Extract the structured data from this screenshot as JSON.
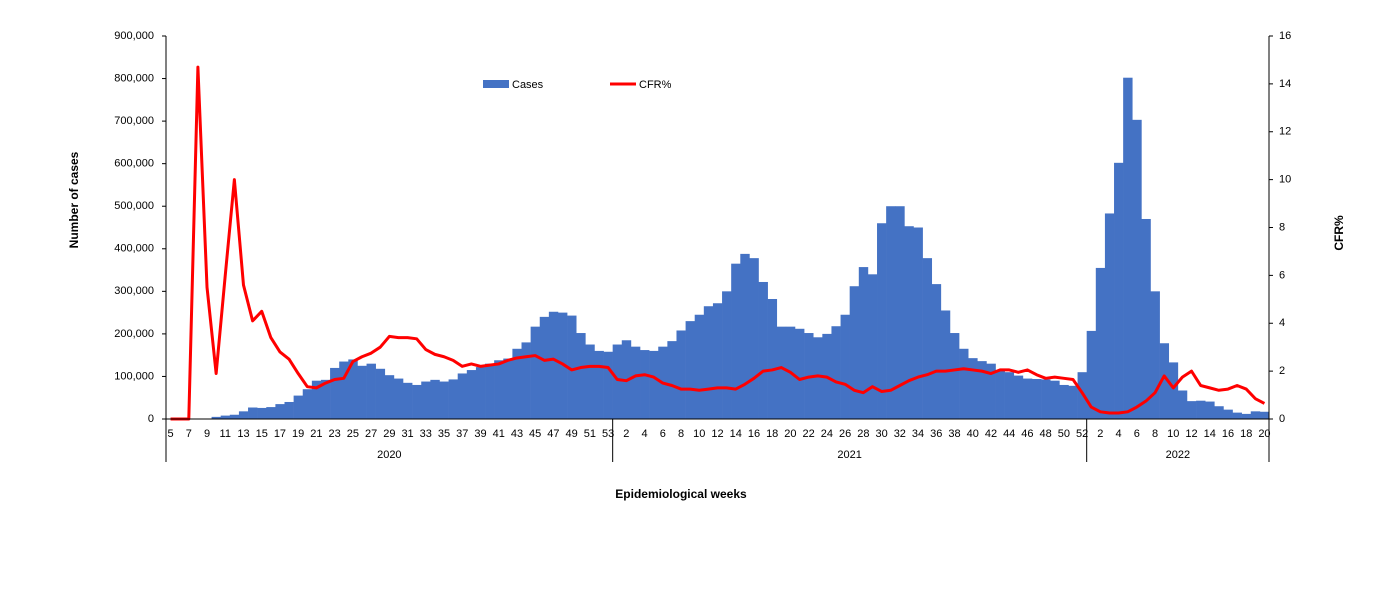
{
  "chart_data": {
    "type": "bar-line",
    "y_label": "Number of cases",
    "y2_label": "CFR%",
    "x_label": "Epidemiological weeks",
    "groups": [
      "2020",
      "2021",
      "2022"
    ],
    "categories": [
      5,
      null,
      7,
      null,
      9,
      null,
      11,
      null,
      13,
      null,
      15,
      null,
      17,
      null,
      19,
      null,
      21,
      null,
      23,
      null,
      25,
      null,
      27,
      null,
      29,
      null,
      31,
      null,
      33,
      null,
      35,
      null,
      37,
      null,
      39,
      null,
      41,
      null,
      43,
      null,
      45,
      null,
      47,
      null,
      49,
      null,
      51,
      null,
      53,
      null,
      2,
      null,
      4,
      null,
      6,
      null,
      8,
      null,
      10,
      null,
      12,
      null,
      14,
      null,
      16,
      null,
      18,
      null,
      20,
      null,
      22,
      null,
      24,
      null,
      26,
      null,
      28,
      null,
      30,
      null,
      32,
      null,
      34,
      null,
      36,
      null,
      38,
      null,
      40,
      null,
      42,
      null,
      44,
      null,
      46,
      null,
      48,
      null,
      50,
      null,
      52,
      null,
      2,
      null,
      4,
      null,
      6,
      null,
      8,
      null,
      10,
      null,
      12,
      null,
      14,
      null,
      16,
      null,
      18,
      null,
      20
    ],
    "series": [
      {
        "name": "Cases",
        "type": "bar",
        "axis": "y",
        "color": "#4472c4",
        "values": [
          0,
          0,
          0,
          0,
          1000,
          5000,
          8000,
          10000,
          18000,
          27000,
          26000,
          28000,
          35000,
          40000,
          55000,
          70000,
          90000,
          92000,
          120000,
          135000,
          140000,
          125000,
          130000,
          118000,
          103000,
          95000,
          85000,
          80000,
          88000,
          92000,
          88000,
          93000,
          107000,
          115000,
          122000,
          130000,
          138000,
          142000,
          165000,
          180000,
          217000,
          240000,
          252000,
          250000,
          243000,
          202000,
          175000,
          160000,
          158000,
          175000,
          185000,
          170000,
          162000,
          160000,
          170000,
          183000,
          208000,
          230000,
          245000,
          265000,
          272000,
          300000,
          365000,
          388000,
          378000,
          322000,
          282000,
          217000,
          217000,
          212000,
          202000,
          192000,
          200000,
          218000,
          245000,
          312000,
          357000,
          340000,
          460000,
          500000,
          500000,
          453000,
          450000,
          378000,
          317000,
          255000,
          202000,
          165000,
          143000,
          136000,
          130000,
          115000,
          110000,
          102000,
          95000,
          94000,
          93000,
          90000,
          80000,
          78000,
          110000,
          207000,
          355000,
          483000,
          602000,
          802000,
          703000,
          470000,
          300000,
          178000,
          133000,
          67000,
          42000,
          43000,
          41000,
          30000,
          22000,
          15000,
          12000,
          18000,
          17000
        ]
      },
      {
        "name": "CFR%",
        "type": "line",
        "axis": "y2",
        "color": "#ff0000",
        "values": [
          0,
          0,
          0,
          14.7,
          5.5,
          1.9,
          6.0,
          10.0,
          5.6,
          4.1,
          4.5,
          3.4,
          2.8,
          2.5,
          1.9,
          1.35,
          1.3,
          1.5,
          1.65,
          1.7,
          2.4,
          2.6,
          2.75,
          3.0,
          3.45,
          3.4,
          3.4,
          3.35,
          2.9,
          2.7,
          2.6,
          2.45,
          2.2,
          2.3,
          2.2,
          2.25,
          2.3,
          2.45,
          2.55,
          2.6,
          2.65,
          2.45,
          2.5,
          2.3,
          2.05,
          2.15,
          2.2,
          2.2,
          2.15,
          1.65,
          1.6,
          1.8,
          1.85,
          1.75,
          1.5,
          1.4,
          1.25,
          1.25,
          1.2,
          1.25,
          1.3,
          1.3,
          1.25,
          1.45,
          1.7,
          2.0,
          2.05,
          2.15,
          1.95,
          1.65,
          1.75,
          1.8,
          1.75,
          1.55,
          1.45,
          1.2,
          1.1,
          1.35,
          1.15,
          1.2,
          1.4,
          1.6,
          1.75,
          1.85,
          2.0,
          2.0,
          2.05,
          2.1,
          2.05,
          2.0,
          1.9,
          2.05,
          2.05,
          1.95,
          2.05,
          1.85,
          1.7,
          1.75,
          1.7,
          1.65,
          1.1,
          0.5,
          0.3,
          0.25,
          0.25,
          0.3,
          0.5,
          0.75,
          1.1,
          1.8,
          1.3,
          1.75,
          2.0,
          1.4,
          1.3,
          1.2,
          1.25,
          1.4,
          1.25,
          0.85,
          0.65
        ]
      }
    ],
    "ylim": [
      0,
      900000
    ],
    "yticks": [
      0,
      {
        "value": 100000,
        "label": "100,000"
      },
      {
        "value": 200000,
        "label": "200,000"
      },
      {
        "value": 300000,
        "label": "300,000"
      },
      {
        "value": 400000,
        "label": "400,000"
      },
      {
        "value": 500000,
        "label": "500,000"
      },
      {
        "value": 600000,
        "label": "600,000"
      },
      {
        "value": 700000,
        "label": "700,000"
      },
      {
        "value": 800000,
        "label": "800,000"
      },
      {
        "value": 900000,
        "label": "900,000"
      }
    ],
    "y2lim": [
      0,
      16
    ],
    "y2ticks": [
      0,
      2,
      4,
      6,
      8,
      10,
      12,
      14,
      16
    ],
    "grid": false
  }
}
